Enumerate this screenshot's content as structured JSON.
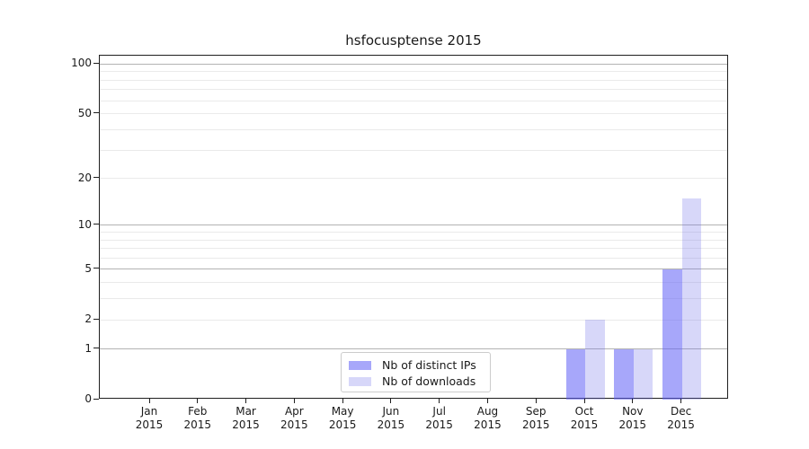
{
  "title": "hsfocusptense 2015",
  "legend": {
    "items": [
      {
        "label": "Nb of distinct IPs",
        "color": "rgba(95,95,245,0.55)"
      },
      {
        "label": "Nb of downloads",
        "color": "rgba(110,110,235,0.28)"
      }
    ]
  },
  "colors": {
    "bar_distinct_ips": "rgba(95,95,245,0.55)",
    "bar_downloads": "rgba(110,110,235,0.28)",
    "grid_major": "#b3b3b3",
    "grid_minor": "#eaeaea",
    "axis": "#1f1f1f"
  },
  "chart_data": {
    "type": "bar",
    "title": "hsfocusptense 2015",
    "categories": [
      "Jan 2015",
      "Feb 2015",
      "Mar 2015",
      "Apr 2015",
      "May 2015",
      "Jun 2015",
      "Jul 2015",
      "Aug 2015",
      "Sep 2015",
      "Oct 2015",
      "Nov 2015",
      "Dec 2015"
    ],
    "series": [
      {
        "name": "Nb of distinct IPs",
        "values": [
          0,
          0,
          0,
          0,
          0,
          0,
          0,
          0,
          0,
          1,
          1,
          5
        ]
      },
      {
        "name": "Nb of downloads",
        "values": [
          0,
          0,
          0,
          0,
          0,
          0,
          0,
          0,
          0,
          2,
          1,
          15
        ]
      }
    ],
    "xlabel": "",
    "ylabel": "",
    "yscale": "log1p",
    "ylim": [
      0,
      100
    ],
    "yticks": [
      0,
      1,
      2,
      5,
      10,
      20,
      50,
      100
    ],
    "minor_gridlines": [
      2,
      3,
      4,
      6,
      7,
      8,
      9,
      20,
      30,
      40,
      50,
      60,
      70,
      80,
      90
    ],
    "major_gridlines": [
      1,
      5,
      10,
      100
    ],
    "grid": "horizontal",
    "legend_position": "lower center"
  }
}
